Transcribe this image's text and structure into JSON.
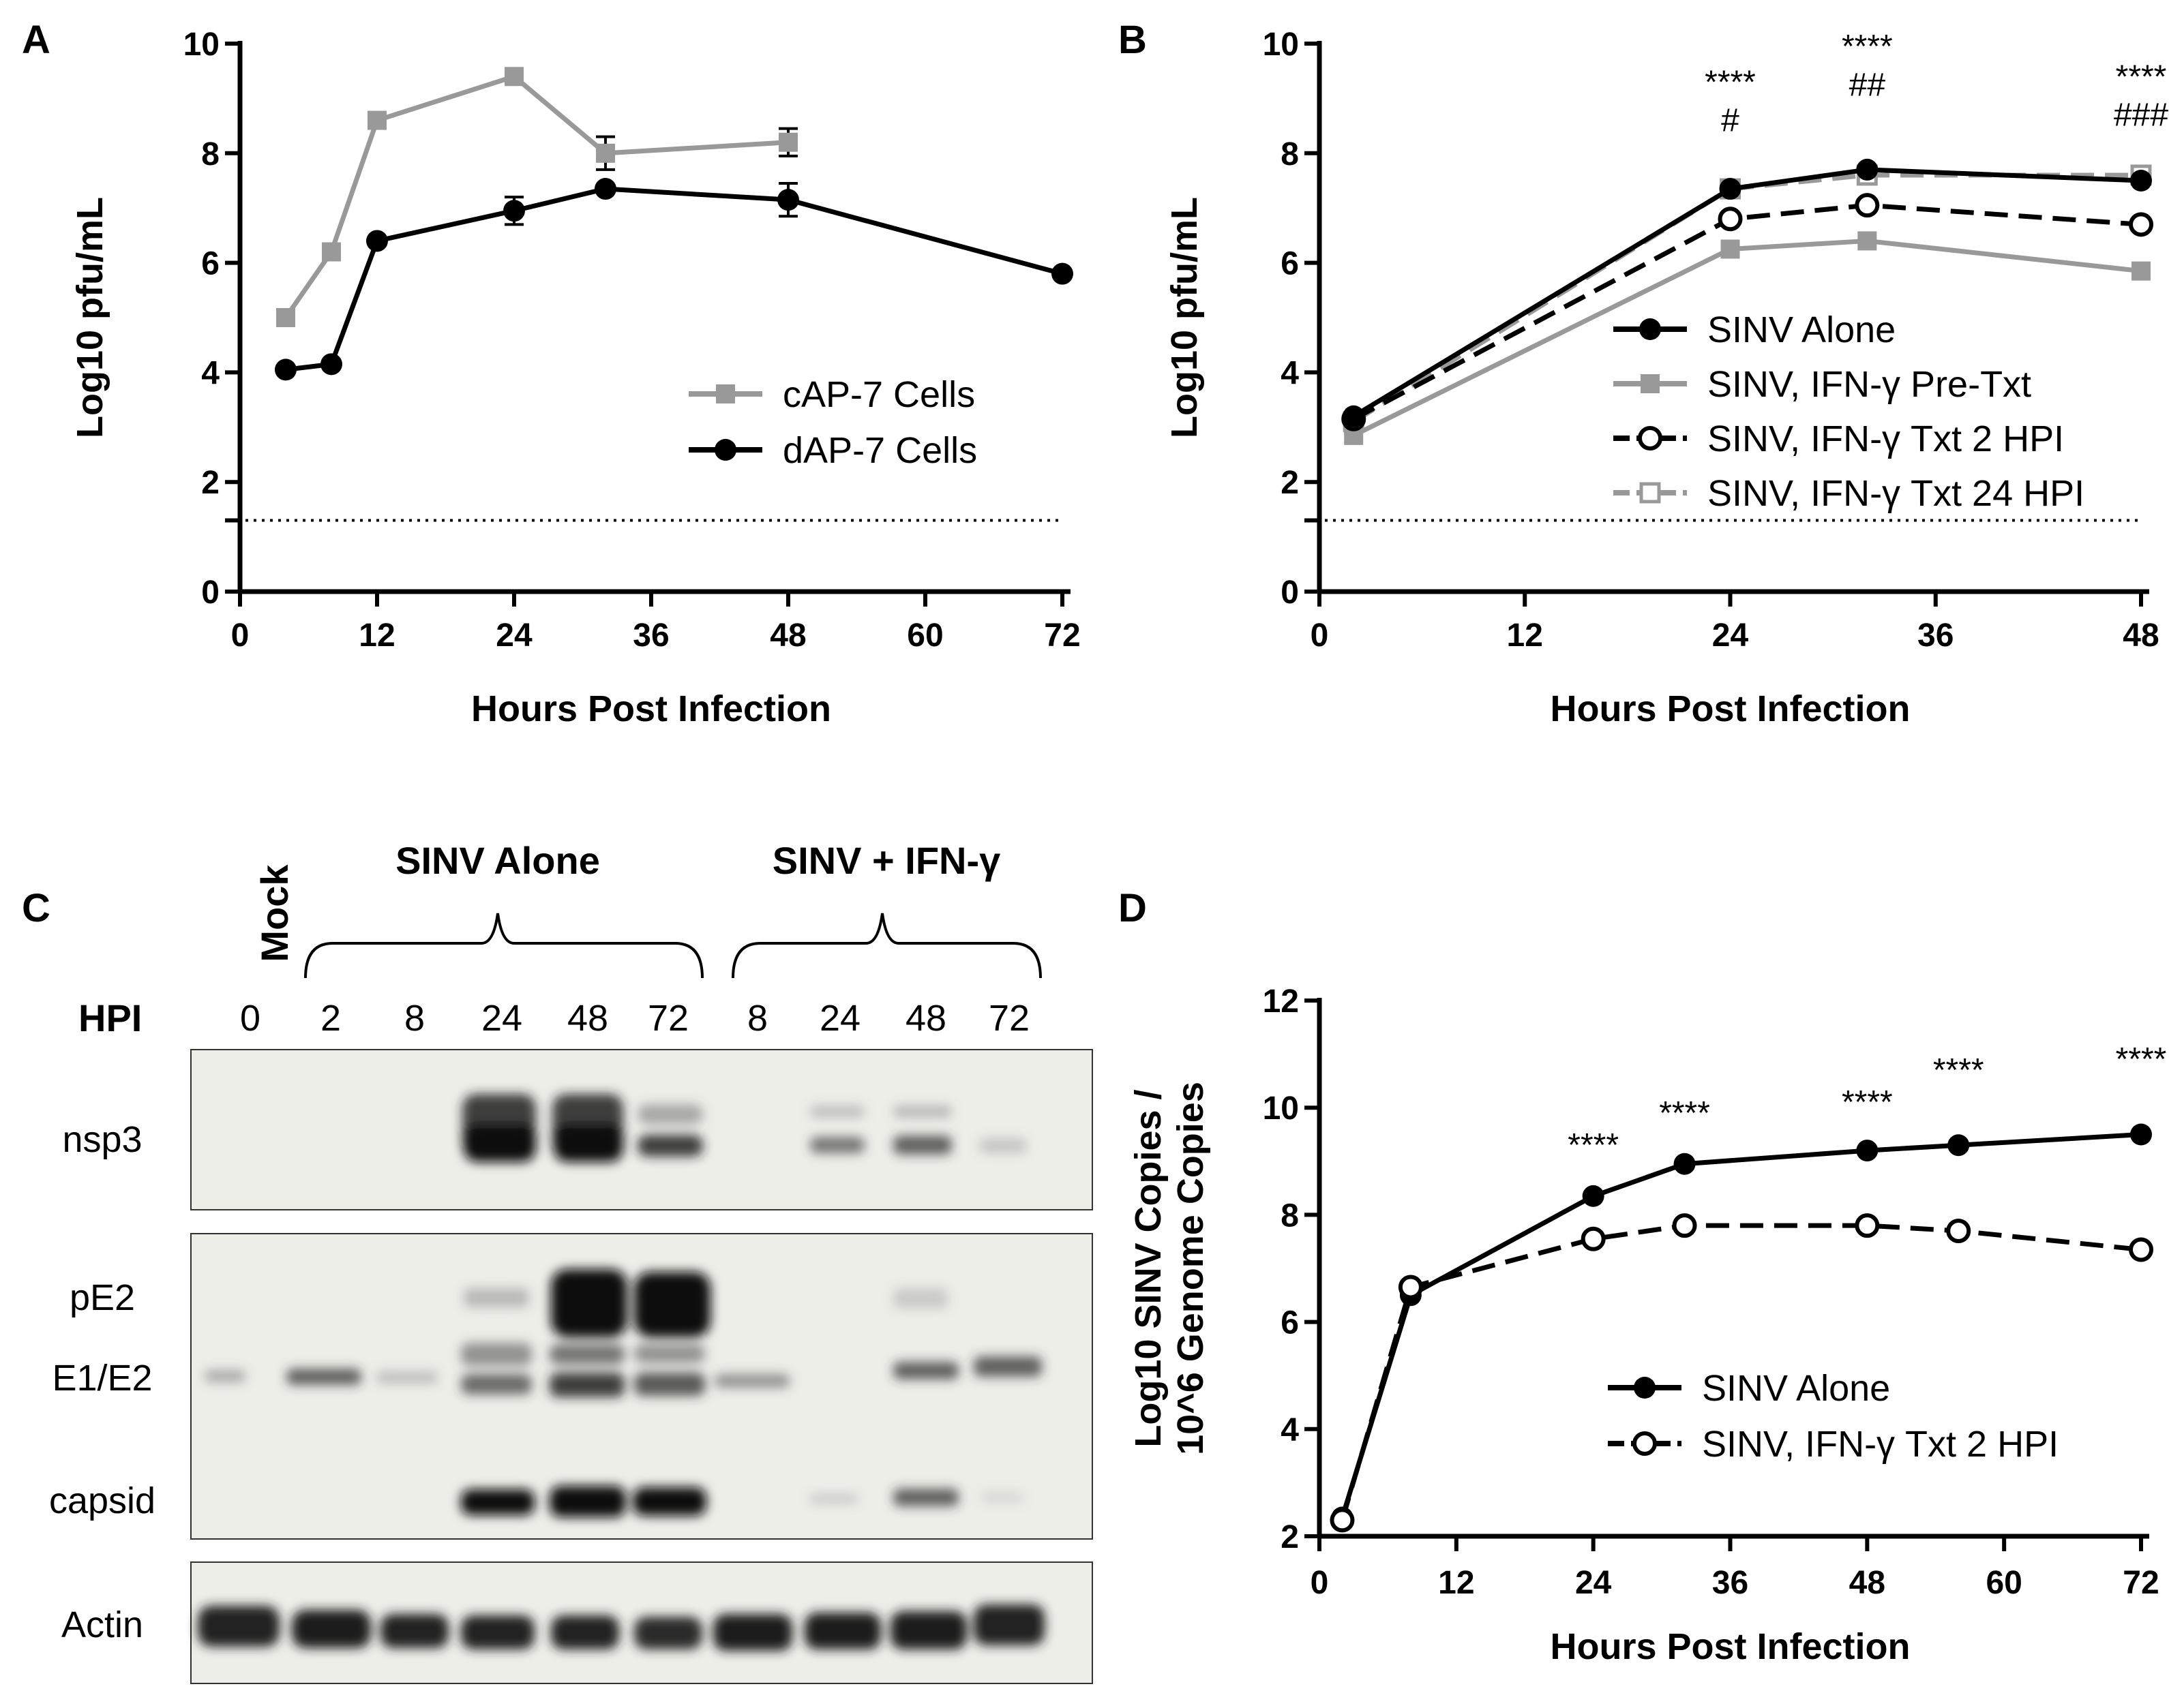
{
  "panels": {
    "A": {
      "label": "A"
    },
    "B": {
      "label": "B"
    },
    "C": {
      "label": "C"
    },
    "D": {
      "label": "D"
    }
  },
  "chart_data": [
    {
      "id": "A",
      "type": "line",
      "title": "",
      "xlabel": "Hours Post Infection",
      "ylabel": "Log10 pfu/mL",
      "xlim": [
        0,
        72
      ],
      "ylim": [
        0,
        10
      ],
      "xticks": [
        0,
        12,
        24,
        36,
        48,
        60,
        72
      ],
      "yticks": [
        0,
        2,
        4,
        6,
        8,
        10
      ],
      "detection_limit": 1.3,
      "legend_position": "center-right",
      "series": [
        {
          "name": "cAP-7 Cells",
          "color": "#999999",
          "marker": "square-filled",
          "dash": "solid",
          "x": [
            4,
            8,
            12,
            24,
            32,
            48
          ],
          "y": [
            5.0,
            6.2,
            8.6,
            9.4,
            8.0,
            8.2
          ],
          "err": [
            0,
            0,
            0,
            0.1,
            0.3,
            0.25
          ]
        },
        {
          "name": "dAP-7 Cells",
          "color": "#000000",
          "marker": "circle-filled",
          "dash": "solid",
          "x": [
            4,
            8,
            12,
            24,
            32,
            48,
            72
          ],
          "y": [
            4.05,
            4.15,
            6.4,
            6.95,
            7.35,
            7.15,
            5.8
          ],
          "err": [
            0,
            0,
            0,
            0.25,
            0,
            0.3,
            0
          ]
        }
      ],
      "annotations": []
    },
    {
      "id": "B",
      "type": "line",
      "title": "",
      "xlabel": "Hours Post Infection",
      "ylabel": "Log10 pfu/mL",
      "xlim": [
        0,
        48
      ],
      "ylim": [
        0,
        10
      ],
      "xticks": [
        0,
        12,
        24,
        36,
        48
      ],
      "yticks": [
        0,
        2,
        4,
        6,
        8,
        10
      ],
      "detection_limit": 1.3,
      "legend_position": "center-right",
      "series": [
        {
          "name": "SINV Alone",
          "color": "#000000",
          "marker": "circle-filled",
          "dash": "solid",
          "x": [
            2,
            24,
            32,
            48
          ],
          "y": [
            3.2,
            7.35,
            7.7,
            7.5
          ],
          "err": [
            0,
            0,
            0,
            0
          ]
        },
        {
          "name": "SINV, IFN-γ Pre-Txt",
          "color": "#999999",
          "marker": "square-filled",
          "dash": "solid",
          "x": [
            2,
            24,
            32,
            48
          ],
          "y": [
            2.85,
            6.25,
            6.4,
            5.85
          ],
          "err": [
            0,
            0,
            0,
            0
          ]
        },
        {
          "name": "SINV, IFN-γ Txt 2 HPI",
          "color": "#000000",
          "marker": "circle-open",
          "dash": "dashed",
          "x": [
            2,
            24,
            32,
            48
          ],
          "y": [
            3.15,
            6.8,
            7.05,
            6.7
          ],
          "err": [
            0,
            0,
            0,
            0
          ]
        },
        {
          "name": "SINV, IFN-γ Txt 24 HPI",
          "color": "#999999",
          "marker": "square-open",
          "dash": "dashed",
          "x": [
            2,
            24,
            32,
            48
          ],
          "y": [
            3.1,
            7.35,
            7.6,
            7.6
          ],
          "err": [
            0,
            0,
            0,
            0
          ]
        }
      ],
      "annotations": [
        {
          "x": 24,
          "y": 9.1,
          "text": "****"
        },
        {
          "x": 24,
          "y": 8.4,
          "text": "#"
        },
        {
          "x": 32,
          "y": 9.75,
          "text": "****"
        },
        {
          "x": 32,
          "y": 9.05,
          "text": "##"
        },
        {
          "x": 48,
          "y": 9.2,
          "text": "****"
        },
        {
          "x": 48,
          "y": 8.5,
          "text": "###"
        }
      ]
    },
    {
      "id": "D",
      "type": "line",
      "title": "",
      "xlabel": "Hours Post Infection",
      "ylabel": "Log10 SINV Copies / 10^6 Genome Copies",
      "ylabel_lines": [
        "Log10 SINV Copies /",
        "10^6 Genome Copies"
      ],
      "xlim": [
        0,
        72
      ],
      "ylim": [
        2,
        12
      ],
      "xticks": [
        0,
        12,
        24,
        36,
        48,
        60,
        72
      ],
      "yticks": [
        2,
        4,
        6,
        8,
        10,
        12
      ],
      "legend_position": "bottom-right",
      "series": [
        {
          "name": "SINV Alone",
          "color": "#000000",
          "marker": "circle-filled",
          "dash": "solid",
          "x": [
            2,
            8,
            24,
            32,
            48,
            56,
            72
          ],
          "y": [
            2.35,
            6.5,
            8.35,
            8.95,
            9.2,
            9.3,
            9.5
          ],
          "err": [
            0,
            0,
            0,
            0,
            0,
            0,
            0
          ]
        },
        {
          "name": "SINV, IFN-γ Txt 2 HPI",
          "color": "#000000",
          "marker": "circle-open",
          "dash": "dashed",
          "x": [
            2,
            8,
            24,
            32,
            48,
            56,
            72
          ],
          "y": [
            2.3,
            6.65,
            7.55,
            7.8,
            7.8,
            7.7,
            7.35
          ],
          "err": [
            0,
            0,
            0,
            0,
            0,
            0,
            0
          ]
        }
      ],
      "annotations": [
        {
          "x": 24,
          "y": 9.1,
          "text": "****"
        },
        {
          "x": 32,
          "y": 9.7,
          "text": "****"
        },
        {
          "x": 48,
          "y": 9.9,
          "text": "****"
        },
        {
          "x": 56,
          "y": 10.5,
          "text": "****"
        },
        {
          "x": 72,
          "y": 10.7,
          "text": "****"
        }
      ]
    }
  ],
  "blot": {
    "groups": {
      "mock": "Mock",
      "sinv_alone": "SINV Alone",
      "sinv_ifn": "SINV + IFN-γ"
    },
    "hpi_label": "HPI",
    "lanes": [
      "0",
      "2",
      "8",
      "24",
      "48",
      "72",
      "8",
      "24",
      "48",
      "72"
    ],
    "rows": {
      "nsp3": "nsp3",
      "pE2": "pE2",
      "E1E2": "E1/E2",
      "capsid": "capsid",
      "actin": "Actin"
    }
  }
}
